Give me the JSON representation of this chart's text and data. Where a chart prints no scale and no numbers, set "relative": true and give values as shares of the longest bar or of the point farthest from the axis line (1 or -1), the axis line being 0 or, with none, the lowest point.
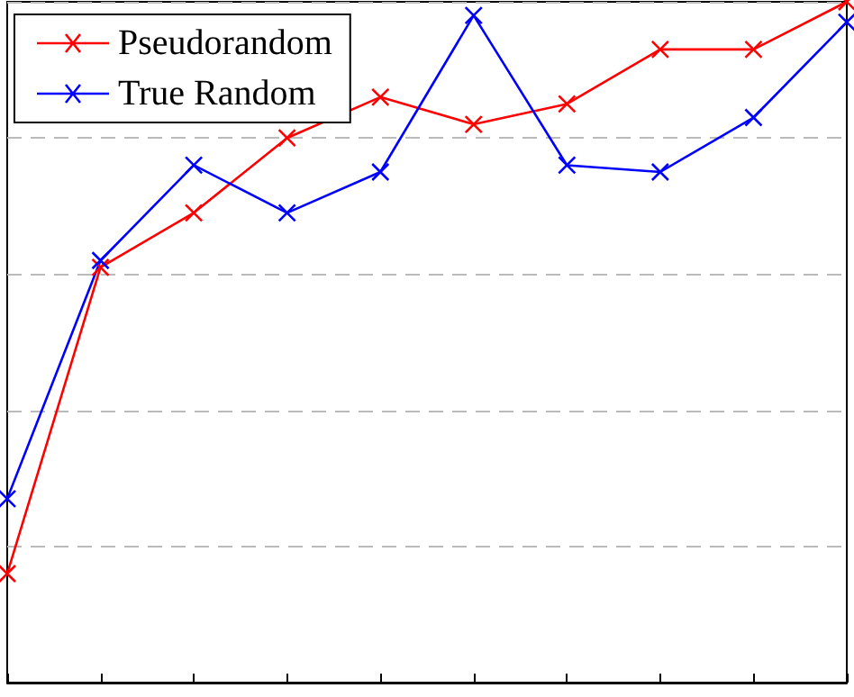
{
  "chart_data": {
    "type": "line",
    "relative": true,
    "categories": [
      null,
      null,
      null,
      null,
      null,
      null,
      null,
      null,
      null,
      null
    ],
    "series": [
      {
        "name": "Pseudorandom",
        "color": "#ff0000",
        "values": [
          0.16,
          0.61,
          0.69,
          0.8,
          0.86,
          0.82,
          0.85,
          0.93,
          0.93,
          1
        ]
      },
      {
        "name": "True Random",
        "color": "#0000ff",
        "values": [
          0.27,
          0.62,
          0.76,
          0.69,
          0.75,
          0.98,
          0.76,
          0.75,
          0.83,
          0.97
        ]
      }
    ],
    "grid": "y",
    "legend": "top left",
    "marker": "cross",
    "line_style": "solid"
  }
}
